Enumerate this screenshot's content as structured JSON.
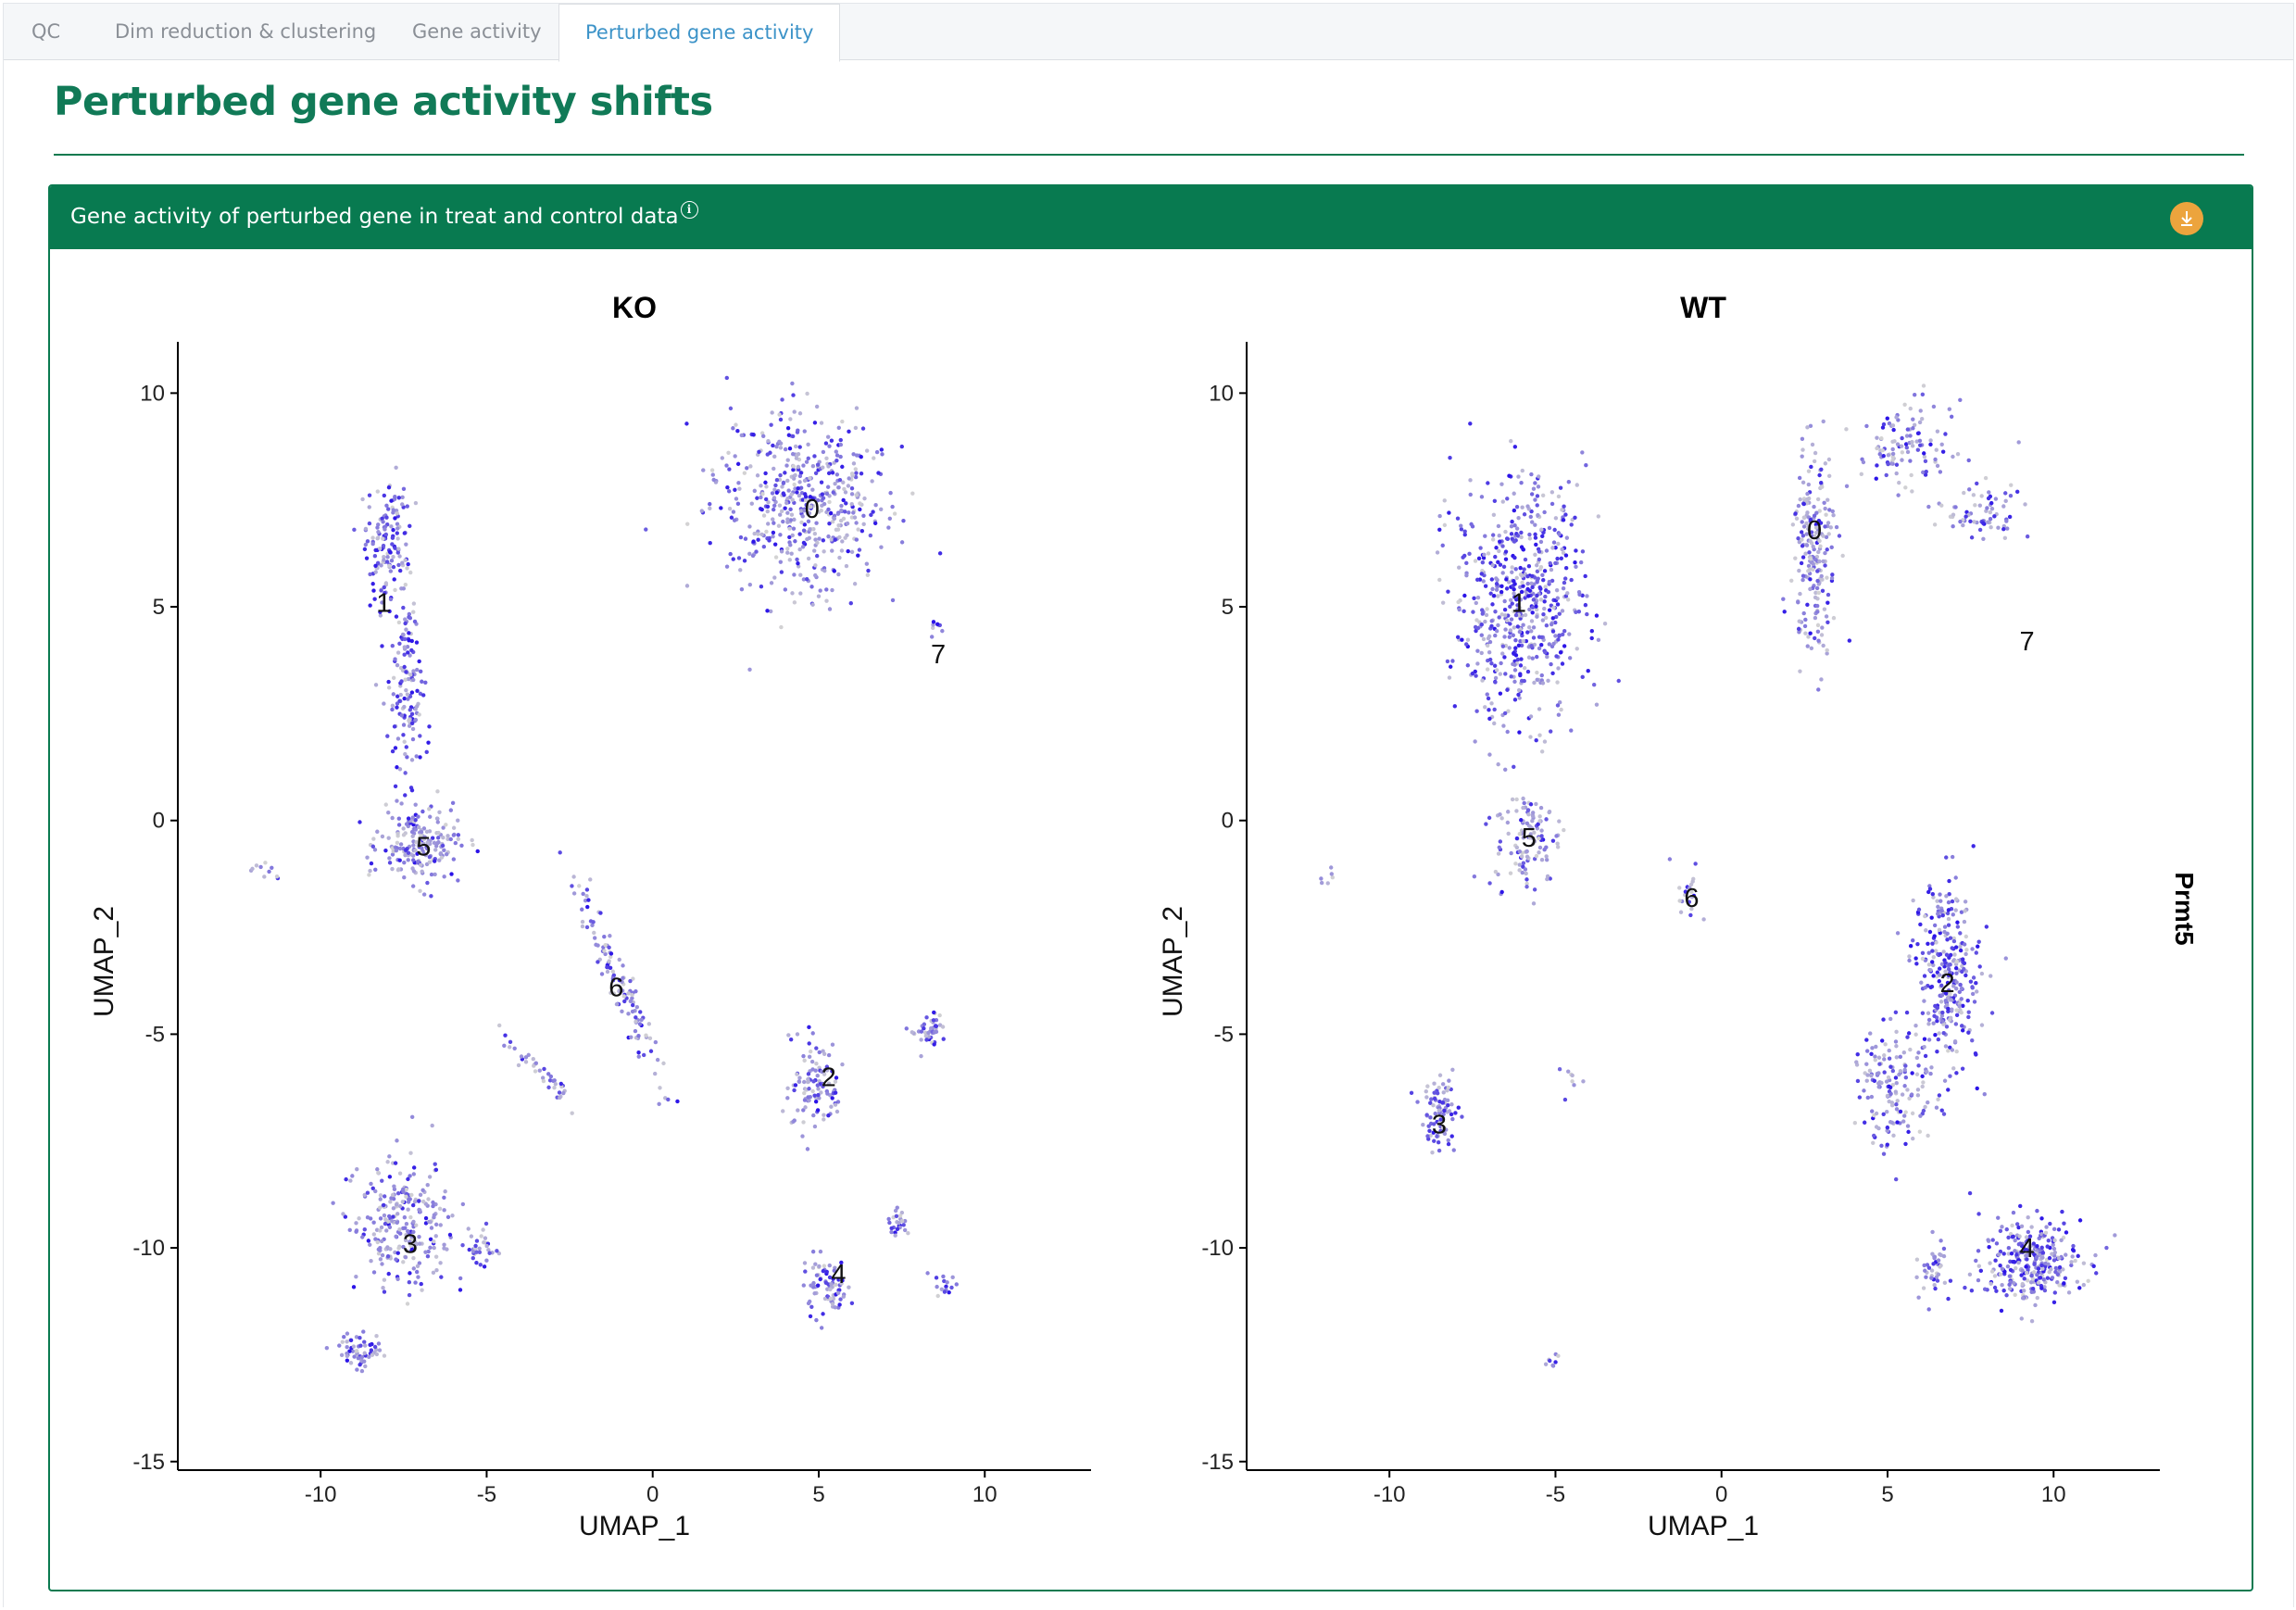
{
  "tabs": [
    {
      "label": "QC",
      "active": false
    },
    {
      "label": "Dim reduction & clustering",
      "active": false
    },
    {
      "label": "Gene activity",
      "active": false
    },
    {
      "label": "Perturbed gene activity",
      "active": true
    }
  ],
  "page_title": "Perturbed gene activity shifts",
  "box": {
    "title": "Gene activity of perturbed gene in treat and control data",
    "info_icon": "info-circle-icon",
    "download_icon": "download-icon",
    "download_color": "#eca43d",
    "header_color": "#087a50"
  },
  "colors": {
    "accent": "#117a57",
    "low": "#d3d3d3",
    "high": "#2a12e8"
  },
  "chart_data": [
    {
      "type": "scatter",
      "title": "KO",
      "xlabel": "UMAP_1",
      "ylabel": "UMAP_2",
      "xlim": [
        -14.3,
        13.2
      ],
      "ylim": [
        -15.2,
        11.2
      ],
      "xticks": [
        -10,
        -5,
        0,
        5,
        10
      ],
      "yticks": [
        -15,
        -10,
        -5,
        0,
        5,
        10
      ],
      "clusters": [
        {
          "label": "0",
          "x": 4.8,
          "y": 7.3
        },
        {
          "label": "1",
          "x": -8.1,
          "y": 5.1
        },
        {
          "label": "2",
          "x": 5.3,
          "y": -6.0
        },
        {
          "label": "3",
          "x": -7.3,
          "y": -9.9
        },
        {
          "label": "4",
          "x": 5.6,
          "y": -10.6
        },
        {
          "label": "5",
          "x": -6.9,
          "y": -0.6
        },
        {
          "label": "6",
          "x": -1.1,
          "y": -3.9
        },
        {
          "label": "7",
          "x": 8.6,
          "y": 3.9
        }
      ]
    },
    {
      "type": "scatter",
      "title": "WT",
      "xlabel": "UMAP_1",
      "ylabel": "UMAP_2",
      "xlim": [
        -14.3,
        13.2
      ],
      "ylim": [
        -15.2,
        11.2
      ],
      "xticks": [
        -10,
        -5,
        0,
        5,
        10
      ],
      "yticks": [
        -15,
        -10,
        -5,
        0,
        5,
        10
      ],
      "legend_label": "Prmt5",
      "clusters": [
        {
          "label": "0",
          "x": 2.8,
          "y": 6.8
        },
        {
          "label": "1",
          "x": -6.1,
          "y": 5.1
        },
        {
          "label": "2",
          "x": 6.8,
          "y": -3.8
        },
        {
          "label": "3",
          "x": -8.5,
          "y": -7.1
        },
        {
          "label": "4",
          "x": 9.2,
          "y": -10.0
        },
        {
          "label": "5",
          "x": -5.8,
          "y": -0.4
        },
        {
          "label": "6",
          "x": -0.9,
          "y": -1.8
        },
        {
          "label": "7",
          "x": 9.2,
          "y": 4.2
        }
      ]
    }
  ]
}
